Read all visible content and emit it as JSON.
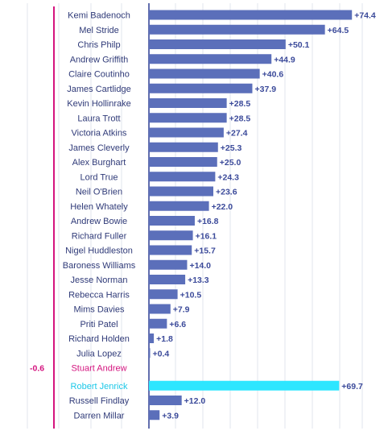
{
  "chart_data": {
    "type": "bar",
    "orientation": "horizontal",
    "xlim": [
      -0.6,
      80
    ],
    "grid": true,
    "colors": {
      "bar": "#5b6fba",
      "highlight": "#2ee6ff",
      "negative": "#d4147f",
      "axis": "#3b4a9a"
    },
    "rows": [
      {
        "label": "Kemi Badenoch",
        "value": 74.4,
        "value_label": "+74.4",
        "style": "normal"
      },
      {
        "label": "Mel Stride",
        "value": 64.5,
        "value_label": "+64.5",
        "style": "normal"
      },
      {
        "label": "Chris Philp",
        "value": 50.1,
        "value_label": "+50.1",
        "style": "normal"
      },
      {
        "label": "Andrew Griffith",
        "value": 44.9,
        "value_label": "+44.9",
        "style": "normal"
      },
      {
        "label": "Claire Coutinho",
        "value": 40.6,
        "value_label": "+40.6",
        "style": "normal"
      },
      {
        "label": "James Cartlidge",
        "value": 37.9,
        "value_label": "+37.9",
        "style": "normal"
      },
      {
        "label": "Kevin Hollinrake",
        "value": 28.5,
        "value_label": "+28.5",
        "style": "normal"
      },
      {
        "label": "Laura Trott",
        "value": 28.5,
        "value_label": "+28.5",
        "style": "normal"
      },
      {
        "label": "Victoria Atkins",
        "value": 27.4,
        "value_label": "+27.4",
        "style": "normal"
      },
      {
        "label": "James Cleverly",
        "value": 25.3,
        "value_label": "+25.3",
        "style": "normal"
      },
      {
        "label": "Alex Burghart",
        "value": 25.0,
        "value_label": "+25.0",
        "style": "normal"
      },
      {
        "label": "Lord True",
        "value": 24.3,
        "value_label": "+24.3",
        "style": "normal"
      },
      {
        "label": "Neil O'Brien",
        "value": 23.6,
        "value_label": "+23.6",
        "style": "normal"
      },
      {
        "label": "Helen Whately",
        "value": 22.0,
        "value_label": "+22.0",
        "style": "normal"
      },
      {
        "label": "Andrew Bowie",
        "value": 16.8,
        "value_label": "+16.8",
        "style": "normal"
      },
      {
        "label": "Richard Fuller",
        "value": 16.1,
        "value_label": "+16.1",
        "style": "normal"
      },
      {
        "label": "Nigel Huddleston",
        "value": 15.7,
        "value_label": "+15.7",
        "style": "normal"
      },
      {
        "label": "Baroness Williams",
        "value": 14.0,
        "value_label": "+14.0",
        "style": "normal"
      },
      {
        "label": "Jesse Norman",
        "value": 13.3,
        "value_label": "+13.3",
        "style": "normal"
      },
      {
        "label": "Rebecca Harris",
        "value": 10.5,
        "value_label": "+10.5",
        "style": "normal"
      },
      {
        "label": "Mims Davies",
        "value": 7.9,
        "value_label": "+7.9",
        "style": "normal"
      },
      {
        "label": "Priti Patel",
        "value": 6.6,
        "value_label": "+6.6",
        "style": "normal"
      },
      {
        "label": "Richard Holden",
        "value": 1.8,
        "value_label": "+1.8",
        "style": "normal"
      },
      {
        "label": "Julia Lopez",
        "value": 0.4,
        "value_label": "+0.4",
        "style": "normal"
      },
      {
        "label": "Stuart Andrew",
        "value": -0.6,
        "value_label": "-0.6",
        "style": "negative"
      },
      {
        "label": "Robert Jenrick",
        "value": 69.7,
        "value_label": "+69.7",
        "style": "highlight"
      },
      {
        "label": "Russell Findlay",
        "value": 12.0,
        "value_label": "+12.0",
        "style": "normal"
      },
      {
        "label": "Darren Millar",
        "value": 3.9,
        "value_label": "+3.9",
        "style": "normal"
      }
    ]
  }
}
